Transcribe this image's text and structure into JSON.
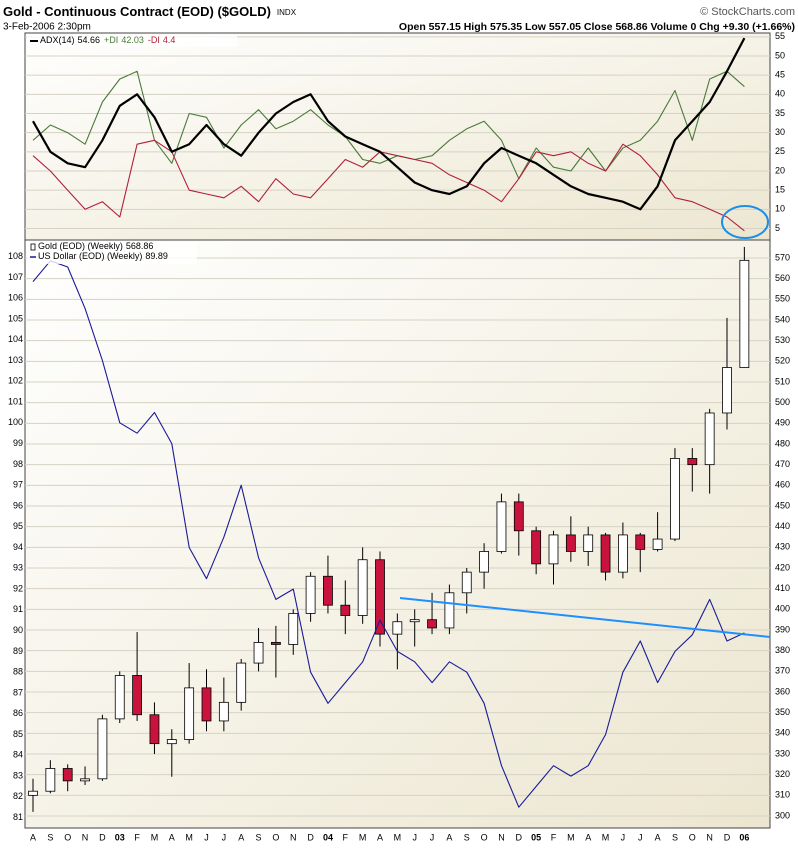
{
  "header": {
    "title": "Gold - Continuous Contract (EOD) ($GOLD)",
    "exchange": "INDX",
    "credit": "© StockCharts.com",
    "date": "3-Feb-2006 2:30pm",
    "quote": "Open 557.15 High 575.35 Low 557.05 Close 568.86 Volume 0 Chg +9.30 (+1.66%)"
  },
  "chart_data": [
    {
      "type": "line",
      "ylim": [
        2,
        56
      ],
      "yticks": [
        5,
        10,
        15,
        20,
        25,
        30,
        35,
        40,
        45,
        50,
        55
      ],
      "grid": true,
      "series": [
        {
          "name": "ADX(14)",
          "color": "#000000",
          "values": [
            33,
            25,
            22,
            21,
            28,
            37,
            40,
            34,
            25,
            27,
            32,
            27,
            24,
            30,
            35,
            38,
            40,
            33,
            29,
            27,
            25,
            21,
            17,
            15,
            14,
            16,
            22,
            26,
            24,
            22,
            19,
            16,
            14,
            13,
            12,
            10,
            16,
            28,
            33,
            38,
            46,
            54.66
          ]
        },
        {
          "name": "+DI",
          "color": "#4a7a3a",
          "values": [
            28,
            32,
            30,
            27,
            38,
            44,
            46,
            28,
            22,
            35,
            34,
            26,
            32,
            36,
            31,
            33,
            36,
            32,
            29,
            23,
            22,
            24,
            23,
            24,
            28,
            31,
            33,
            28,
            18,
            26,
            21,
            20,
            26,
            20,
            26,
            28,
            33,
            41,
            28,
            44,
            46,
            42.03
          ]
        },
        {
          "name": "-DI",
          "color": "#b0203a",
          "values": [
            24,
            20,
            15,
            10,
            12,
            8,
            27,
            28,
            25,
            15,
            14,
            13,
            16,
            12,
            18,
            14,
            13,
            18,
            23,
            21,
            25,
            24,
            23,
            22,
            19,
            17,
            15,
            12,
            18,
            25,
            24,
            25,
            22,
            20,
            27,
            24,
            19,
            13,
            12,
            10,
            8,
            4.4
          ]
        }
      ]
    },
    {
      "type": "candlestick",
      "categories": [
        "A",
        "S",
        "O",
        "N",
        "D",
        "03",
        "F",
        "M",
        "A",
        "M",
        "J",
        "J",
        "A",
        "S",
        "O",
        "N",
        "D",
        "04",
        "F",
        "M",
        "A",
        "M",
        "J",
        "J",
        "A",
        "S",
        "O",
        "N",
        "D",
        "05",
        "F",
        "M",
        "A",
        "M",
        "J",
        "J",
        "A",
        "S",
        "O",
        "N",
        "D",
        "06"
      ],
      "ylim": [
        294.2,
        578.7
      ],
      "yticks": [
        300,
        310,
        320,
        330,
        340,
        350,
        360,
        370,
        380,
        390,
        400,
        410,
        420,
        430,
        440,
        450,
        460,
        470,
        480,
        490,
        500,
        510,
        520,
        530,
        540,
        550,
        560,
        570
      ],
      "y2lim": [
        80.5,
        108.8
      ],
      "y2ticks": [
        81,
        82,
        83,
        84,
        85,
        86,
        87,
        88,
        89,
        90,
        91,
        92,
        93,
        94,
        95,
        96,
        97,
        98,
        99,
        100,
        101,
        102,
        103,
        104,
        105,
        106,
        107,
        108
      ],
      "grid": true,
      "series": [
        {
          "name": "Gold (EOD) (Weekly)",
          "up_color": "#ffffff",
          "down_color": "#c8143c",
          "open": [
            310,
            312,
            323,
            317,
            318,
            347,
            368,
            349,
            335,
            337,
            362,
            346,
            355,
            374,
            384,
            383,
            398,
            416,
            402,
            397,
            424,
            388,
            394,
            395,
            391,
            408,
            418,
            428,
            452,
            438,
            422,
            436,
            428,
            436,
            418,
            436,
            429,
            434,
            473,
            470,
            495,
            517
          ],
          "high": [
            318,
            327,
            325,
            324,
            349,
            370,
            389,
            355,
            342,
            374,
            371,
            367,
            376,
            391,
            392,
            400,
            418,
            426,
            414,
            430,
            428,
            398,
            400,
            408,
            412,
            420,
            432,
            456,
            456,
            440,
            438,
            445,
            440,
            437,
            442,
            437,
            447,
            478,
            478,
            497,
            541,
            575.35
          ],
          "low": [
            302,
            311,
            312,
            315,
            317,
            345,
            346,
            330,
            319,
            335,
            341,
            341,
            351,
            370,
            367,
            378,
            394,
            398,
            388,
            393,
            382,
            371,
            382,
            388,
            388,
            398,
            410,
            427,
            426,
            417,
            412,
            423,
            421,
            414,
            415,
            418,
            428,
            433,
            457,
            456,
            487,
            517
          ],
          "close": [
            312,
            323,
            317,
            318,
            347,
            368,
            349,
            335,
            337,
            362,
            346,
            355,
            374,
            384,
            383,
            398,
            416,
            402,
            397,
            424,
            388,
            394,
            395,
            391,
            408,
            418,
            428,
            452,
            438,
            422,
            436,
            428,
            436,
            418,
            436,
            429,
            434,
            473,
            470,
            495,
            517,
            568.86
          ]
        },
        {
          "name": "US Dollar (EOD) (Weekly)",
          "color": "#1a1a9a",
          "axis": "y2",
          "values": [
            106.8,
            107.8,
            107.5,
            105.5,
            103,
            100,
            99.5,
            100.5,
            99,
            94,
            92.5,
            94.5,
            97,
            93.5,
            91.5,
            92,
            88,
            86.5,
            87.5,
            88.5,
            90.5,
            89,
            88.5,
            87.5,
            88.5,
            88,
            86.5,
            83.5,
            81.5,
            82.5,
            83.5,
            83,
            83.5,
            85,
            88,
            89.5,
            87.5,
            89,
            89.8,
            91.5,
            89.5,
            89.89
          ]
        }
      ]
    }
  ]
}
